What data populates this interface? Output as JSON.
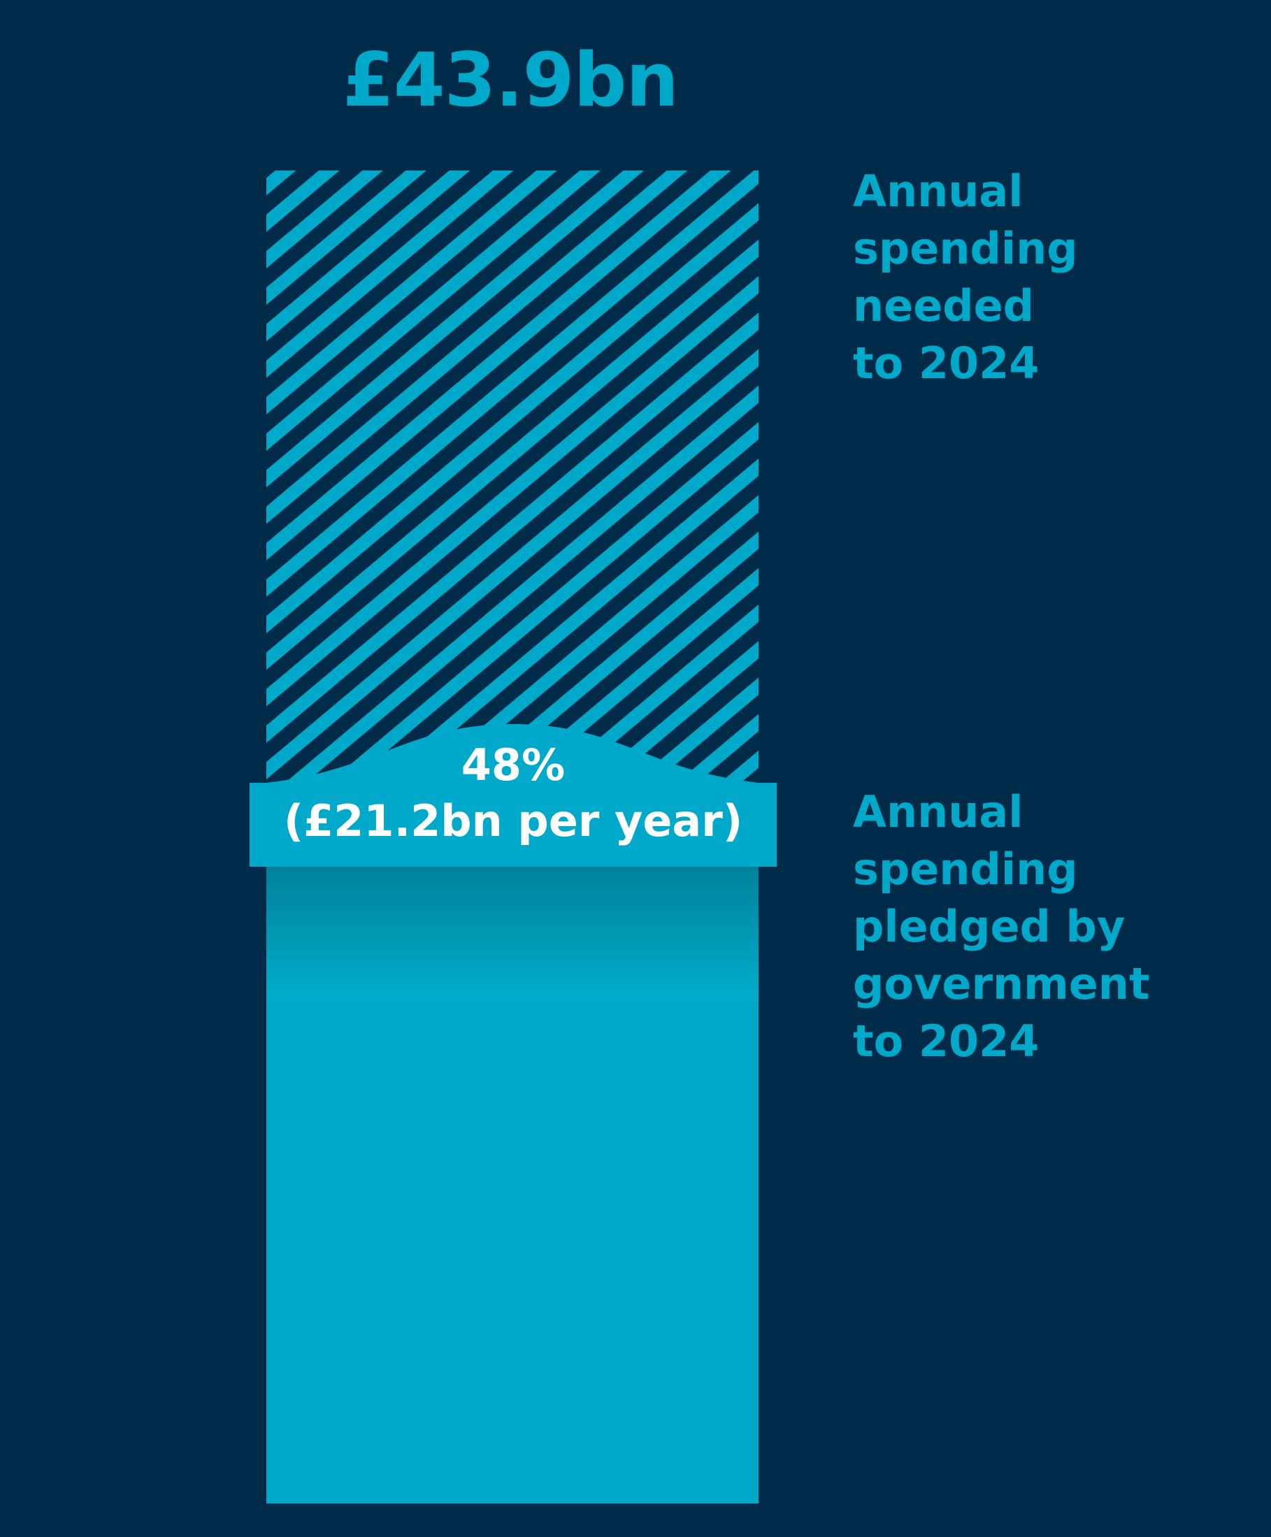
{
  "chart_data": {
    "type": "bar",
    "total_label": "£43.9bn",
    "series": [
      {
        "name": "Annual spending needed to 2024",
        "label": "Annual\nspending\nneeded\nto 2024",
        "value": 43.9,
        "unit": "£bn",
        "style": "hatched"
      },
      {
        "name": "Annual spending pledged by government to 2024",
        "label": "Annual\nspending\npledged by\ngovernment\nto 2024",
        "value": 21.2,
        "unit": "£bn",
        "style": "solid"
      }
    ],
    "annotation": {
      "percent": "48%",
      "detail": "(£21.2bn per year)",
      "fraction": 0.48
    },
    "colors": {
      "background": "#002c4a",
      "accent": "#00a9c9",
      "annotation_text": "#ffffff"
    }
  }
}
